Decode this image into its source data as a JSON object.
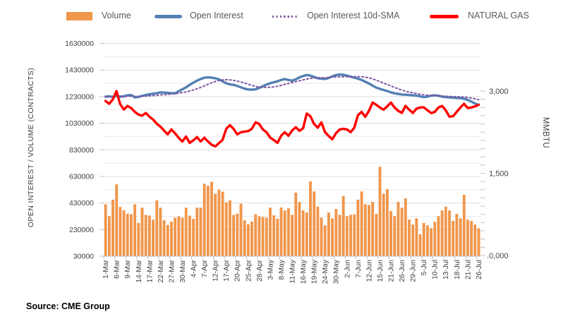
{
  "legend": {
    "items": [
      {
        "label": "Volume",
        "marker": "bar-swatch",
        "color": "#F0964B"
      },
      {
        "label": "Open Interest",
        "marker": "line-swatch",
        "color": "#5480B4"
      },
      {
        "label": "Open Interest 10d-SMA",
        "marker": "dotted-line-swatch",
        "color": "#7B54A3"
      },
      {
        "label": "NATURAL GAS",
        "marker": "line-swatch",
        "color": "#FF0000"
      }
    ]
  },
  "footer": {
    "source": "Source: CME Group"
  },
  "chart_data": {
    "type": "combo",
    "subtype": "bar + line, dual axis",
    "ylabel_left": "OPEN INTEREST / VOLUME (CONTRACTS)",
    "ylabel_right": "MMBTU",
    "ylim_left": [
      30000,
      1630000
    ],
    "ylim_right": [
      0,
      3000
    ],
    "grid": "horizontal, every 100000 (left axis)",
    "legend_position": "top",
    "left_ticks": [
      "1630000",
      "1430000",
      "1230000",
      "1030000",
      "830000",
      "630000",
      "430000",
      "230000",
      "30000"
    ],
    "left_tick_values": [
      1630000,
      1430000,
      1230000,
      1030000,
      830000,
      630000,
      430000,
      230000,
      30000
    ],
    "right_ticks": [
      {
        "value": 3000,
        "label": "3,000"
      },
      {
        "value": 1500,
        "label": "1,500"
      },
      {
        "value": 0,
        "label": "0,000"
      }
    ],
    "x_tick_labels": [
      "1-Mar",
      "6-Mar",
      "9-Mar",
      "14-Mar",
      "17-Mar",
      "22-Mar",
      "27-Mar",
      "30-Mar",
      "4-Apr",
      "7-Apr",
      "12-Apr",
      "17-Apr",
      "20-Apr",
      "25-Apr",
      "28-Apr",
      "3-May",
      "8-May",
      "11-May",
      "16-May",
      "19-May",
      "24-May",
      "30-May",
      "2-Jun",
      "7-Jun",
      "12-Jun",
      "15-Jun",
      "21-Jun",
      "26-Jun",
      "29-Jun",
      "5-Jul",
      "10-Jul",
      "13-Jul",
      "18-Jul",
      "21-Jul",
      "26-Jul"
    ],
    "points_per_tick": 3,
    "sma_window": 10,
    "series": [
      {
        "name": "Volume",
        "type": "bar",
        "axis": "left",
        "color": "#F0964B",
        "values": [
          420000,
          330000,
          455000,
          570000,
          400000,
          375000,
          350000,
          345000,
          420000,
          280000,
          395000,
          340000,
          335000,
          305000,
          450000,
          395000,
          300000,
          265000,
          290000,
          320000,
          330000,
          320000,
          395000,
          335000,
          310000,
          395000,
          395000,
          575000,
          560000,
          590000,
          500000,
          530000,
          515000,
          435000,
          450000,
          340000,
          350000,
          425000,
          300000,
          270000,
          290000,
          345000,
          330000,
          325000,
          320000,
          395000,
          337000,
          312000,
          396000,
          374000,
          390000,
          341000,
          508000,
          438000,
          374000,
          358000,
          592000,
          517000,
          403000,
          321000,
          262000,
          358000,
          315000,
          385000,
          341000,
          482000,
          330000,
          341000,
          345000,
          455000,
          517000,
          420000,
          415000,
          438000,
          348000,
          702000,
          500000,
          533000,
          369000,
          330000,
          438000,
          395000,
          465000,
          305000,
          268000,
          315000,
          195000,
          280000,
          262000,
          241000,
          288000,
          330000,
          374000,
          403000,
          374000,
          295000,
          348000,
          315000,
          492000,
          305000,
          295000,
          268000,
          240000
        ]
      },
      {
        "name": "Open Interest",
        "type": "line",
        "axis": "left",
        "color": "#5480B4",
        "values": [
          1230000,
          1232000,
          1228000,
          1235000,
          1230000,
          1232000,
          1240000,
          1242000,
          1224000,
          1228000,
          1235000,
          1242000,
          1248000,
          1252000,
          1256000,
          1262000,
          1260000,
          1258000,
          1256000,
          1255000,
          1270000,
          1285000,
          1300000,
          1318000,
          1335000,
          1350000,
          1362000,
          1372000,
          1375000,
          1372000,
          1368000,
          1360000,
          1345000,
          1330000,
          1322000,
          1318000,
          1310000,
          1300000,
          1290000,
          1284000,
          1282000,
          1285000,
          1295000,
          1308000,
          1320000,
          1330000,
          1338000,
          1345000,
          1355000,
          1362000,
          1355000,
          1350000,
          1360000,
          1375000,
          1385000,
          1392000,
          1388000,
          1378000,
          1368000,
          1365000,
          1362000,
          1370000,
          1382000,
          1392000,
          1396000,
          1394000,
          1388000,
          1380000,
          1372000,
          1365000,
          1355000,
          1342000,
          1328000,
          1312000,
          1298000,
          1288000,
          1280000,
          1272000,
          1262000,
          1255000,
          1250000,
          1246000,
          1244000,
          1242000,
          1240000,
          1236000,
          1232000,
          1226000,
          1230000,
          1236000,
          1240000,
          1236000,
          1230000,
          1226000,
          1224000,
          1222000,
          1220000,
          1218000,
          1214000,
          1205000,
          1192000,
          1178000,
          1168000
        ]
      },
      {
        "name": "Open Interest 10d-SMA",
        "type": "dotted-line",
        "axis": "left",
        "color": "#7B54A3",
        "derived_from": "Open Interest",
        "window": 10
      },
      {
        "name": "NATURAL GAS",
        "type": "line",
        "axis": "right",
        "color": "#FF0000",
        "values": [
          2819,
          2767,
          2850,
          3000,
          2760,
          2663,
          2728,
          2690,
          2620,
          2570,
          2550,
          2600,
          2533,
          2480,
          2404,
          2350,
          2280,
          2210,
          2300,
          2230,
          2145,
          2080,
          2171,
          2054,
          2100,
          2160,
          2080,
          2150,
          2080,
          2020,
          1989,
          2050,
          2110,
          2313,
          2378,
          2310,
          2210,
          2250,
          2260,
          2270,
          2313,
          2430,
          2400,
          2300,
          2249,
          2150,
          2106,
          2054,
          2184,
          2249,
          2184,
          2280,
          2339,
          2274,
          2320,
          2590,
          2540,
          2400,
          2330,
          2430,
          2250,
          2180,
          2120,
          2230,
          2300,
          2310,
          2300,
          2250,
          2330,
          2560,
          2620,
          2530,
          2640,
          2790,
          2750,
          2700,
          2660,
          2720,
          2790,
          2700,
          2640,
          2600,
          2730,
          2660,
          2600,
          2680,
          2700,
          2702,
          2650,
          2598,
          2620,
          2700,
          2728,
          2650,
          2533,
          2540,
          2620,
          2700,
          2767,
          2690,
          2700,
          2720,
          2750
        ]
      }
    ]
  }
}
